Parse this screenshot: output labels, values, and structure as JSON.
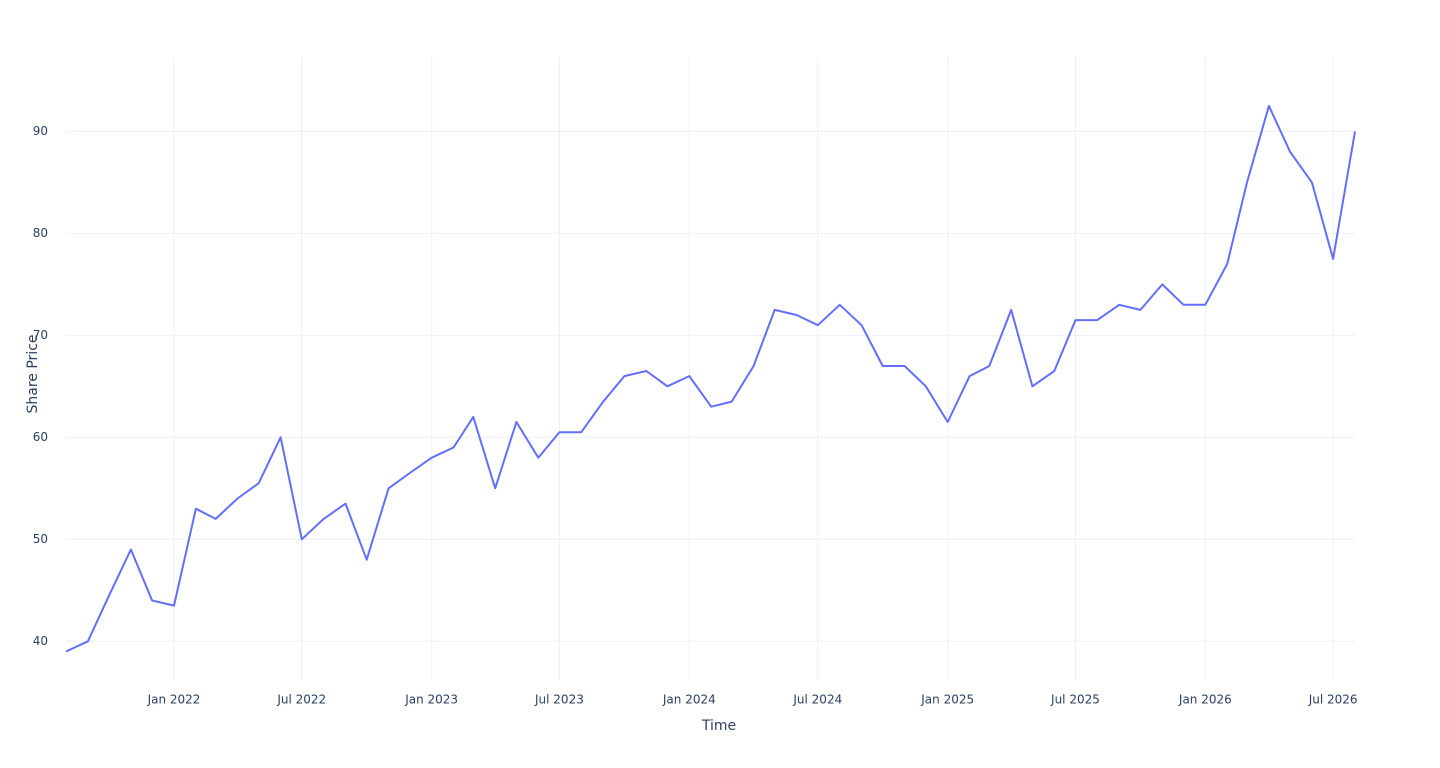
{
  "chart_data": {
    "type": "line",
    "x_title": "Time",
    "y_title": "Share Price",
    "x": [
      "2021-08",
      "2021-09",
      "2021-10",
      "2021-11",
      "2021-12",
      "2022-01",
      "2022-02",
      "2022-03",
      "2022-04",
      "2022-05",
      "2022-06",
      "2022-07",
      "2022-08",
      "2022-09",
      "2022-10",
      "2022-11",
      "2022-12",
      "2023-01",
      "2023-02",
      "2023-03",
      "2023-04",
      "2023-05",
      "2023-06",
      "2023-07",
      "2023-08",
      "2023-09",
      "2023-10",
      "2023-11",
      "2023-12",
      "2024-01",
      "2024-02",
      "2024-03",
      "2024-04",
      "2024-05",
      "2024-06",
      "2024-07",
      "2024-08",
      "2024-09",
      "2024-10",
      "2024-11",
      "2024-12",
      "2025-01",
      "2025-02",
      "2025-03",
      "2025-04",
      "2025-05",
      "2025-06",
      "2025-07",
      "2025-08",
      "2025-09",
      "2025-10",
      "2025-11",
      "2025-12",
      "2026-01",
      "2026-02",
      "2026-03",
      "2026-04",
      "2026-05",
      "2026-06",
      "2026-07",
      "2026-08"
    ],
    "series": [
      {
        "color": "#636efa",
        "values": [
          39,
          40,
          44.5,
          49,
          44,
          43.5,
          53,
          52,
          54,
          55.5,
          60,
          50,
          52,
          53.5,
          48,
          55,
          56.5,
          58,
          59,
          62,
          55,
          61.5,
          58,
          60.5,
          60.5,
          63.5,
          66,
          66.5,
          65,
          66,
          63,
          63.5,
          67,
          72.5,
          72,
          71,
          73,
          71,
          67,
          67,
          65,
          61.5,
          66,
          67,
          72.5,
          65,
          66.5,
          71.5,
          71.5,
          73,
          72.5,
          75,
          73,
          73,
          77,
          85,
          92.5,
          88,
          85,
          77.5,
          90
        ]
      }
    ],
    "xlim": [
      "2021-08",
      "2026-08"
    ],
    "xticks": [
      {
        "value": "2022-01",
        "label": "Jan 2022"
      },
      {
        "value": "2022-07",
        "label": "Jul 2022"
      },
      {
        "value": "2023-01",
        "label": "Jan 2023"
      },
      {
        "value": "2023-07",
        "label": "Jul 2023"
      },
      {
        "value": "2024-01",
        "label": "Jan 2024"
      },
      {
        "value": "2024-07",
        "label": "Jul 2024"
      },
      {
        "value": "2025-01",
        "label": "Jan 2025"
      },
      {
        "value": "2025-07",
        "label": "Jul 2025"
      },
      {
        "value": "2026-01",
        "label": "Jan 2026"
      },
      {
        "value": "2026-07",
        "label": "Jul 2026"
      }
    ],
    "ylim": [
      36.2,
      97.3
    ],
    "yticks": [
      40,
      50,
      60,
      70,
      80,
      90
    ],
    "grid": true
  }
}
